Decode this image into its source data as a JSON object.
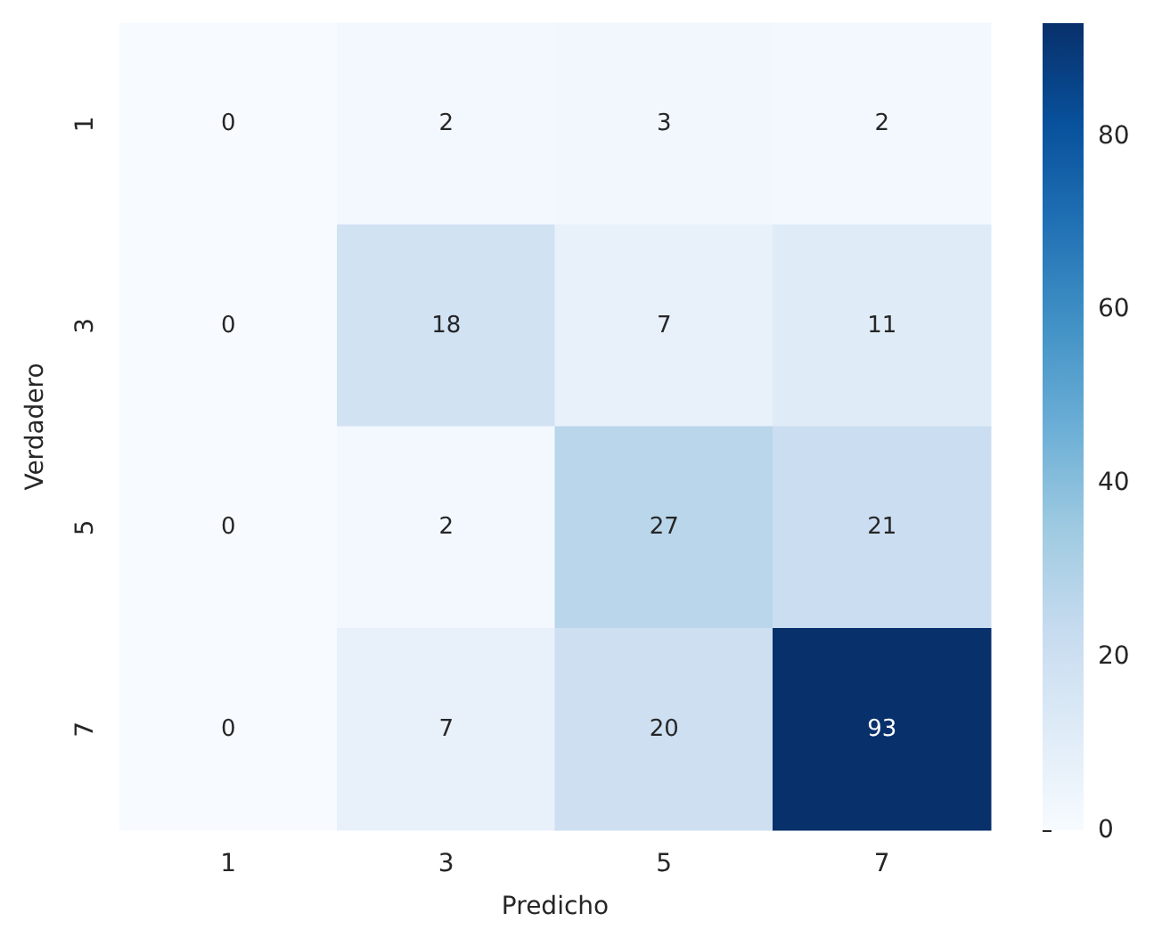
{
  "chart_data": {
    "type": "heatmap",
    "xlabel": "Predicho",
    "ylabel": "Verdadero",
    "categories": [
      "1",
      "3",
      "5",
      "7"
    ],
    "y_categories": [
      "1",
      "3",
      "5",
      "7"
    ],
    "cells": [
      [
        0,
        2,
        3,
        2
      ],
      [
        0,
        18,
        7,
        11
      ],
      [
        0,
        2,
        27,
        21
      ],
      [
        0,
        7,
        20,
        93
      ]
    ],
    "data_labels": true,
    "clim": [
      0,
      93
    ],
    "cticks": [
      0,
      20,
      40,
      60,
      80
    ]
  }
}
